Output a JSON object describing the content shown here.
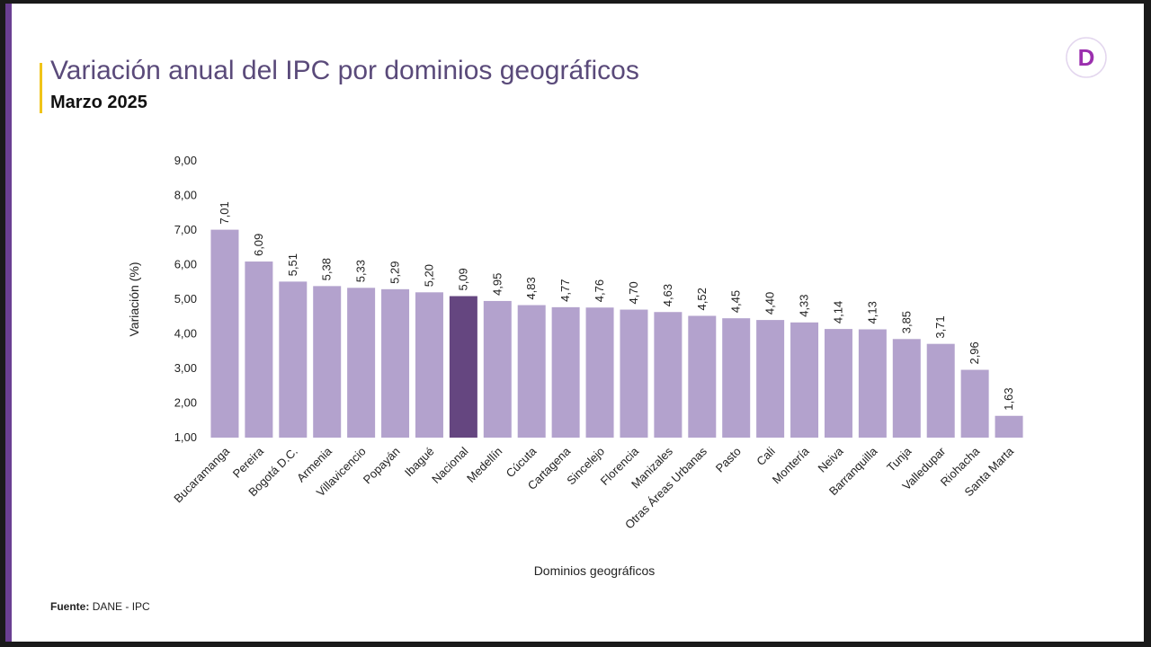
{
  "header": {
    "title": "Variación anual del IPC por dominios geográficos",
    "subtitle": "Marzo 2025"
  },
  "footer": {
    "source_label": "Fuente:",
    "source_text": "DANE - IPC"
  },
  "logo": {
    "icon": "dane-d-logo",
    "letter": "D",
    "color": "#9b2fae"
  },
  "colors": {
    "bar": "#b3a2cd",
    "highlight": "#654680"
  },
  "chart_data": {
    "type": "bar",
    "title": "Variación anual del IPC por dominios geográficos",
    "xlabel": "Dominios geográficos",
    "ylabel": "Variación (%)",
    "ylim": [
      1,
      9
    ],
    "yticks": [
      "1,00",
      "2,00",
      "3,00",
      "4,00",
      "5,00",
      "6,00",
      "7,00",
      "8,00",
      "9,00"
    ],
    "grid": false,
    "highlight_category": "Nacional",
    "categories": [
      "Bucaramanga",
      "Pereira",
      "Bogotá D.C.",
      "Armenia",
      "Villavicencio",
      "Popayán",
      "Ibagué",
      "Nacional",
      "Medellín",
      "Cúcuta",
      "Cartagena",
      "Sincelejo",
      "Florencia",
      "Manizales",
      "Otras Áreas Urbanas",
      "Pasto",
      "Cali",
      "Montería",
      "Neiva",
      "Barranquilla",
      "Tunja",
      "Valledupar",
      "Riohacha",
      "Santa Marta"
    ],
    "values": [
      7.01,
      6.09,
      5.51,
      5.38,
      5.33,
      5.29,
      5.2,
      5.09,
      4.95,
      4.83,
      4.77,
      4.76,
      4.7,
      4.63,
      4.52,
      4.45,
      4.4,
      4.33,
      4.14,
      4.13,
      3.85,
      3.71,
      2.96,
      1.63
    ],
    "value_labels": [
      "7,01",
      "6,09",
      "5,51",
      "5,38",
      "5,33",
      "5,29",
      "5,20",
      "5,09",
      "4,95",
      "4,83",
      "4,77",
      "4,76",
      "4,70",
      "4,63",
      "4,52",
      "4,45",
      "4,40",
      "4,33",
      "4,14",
      "4,13",
      "3,85",
      "3,71",
      "2,96",
      "1,63"
    ]
  }
}
